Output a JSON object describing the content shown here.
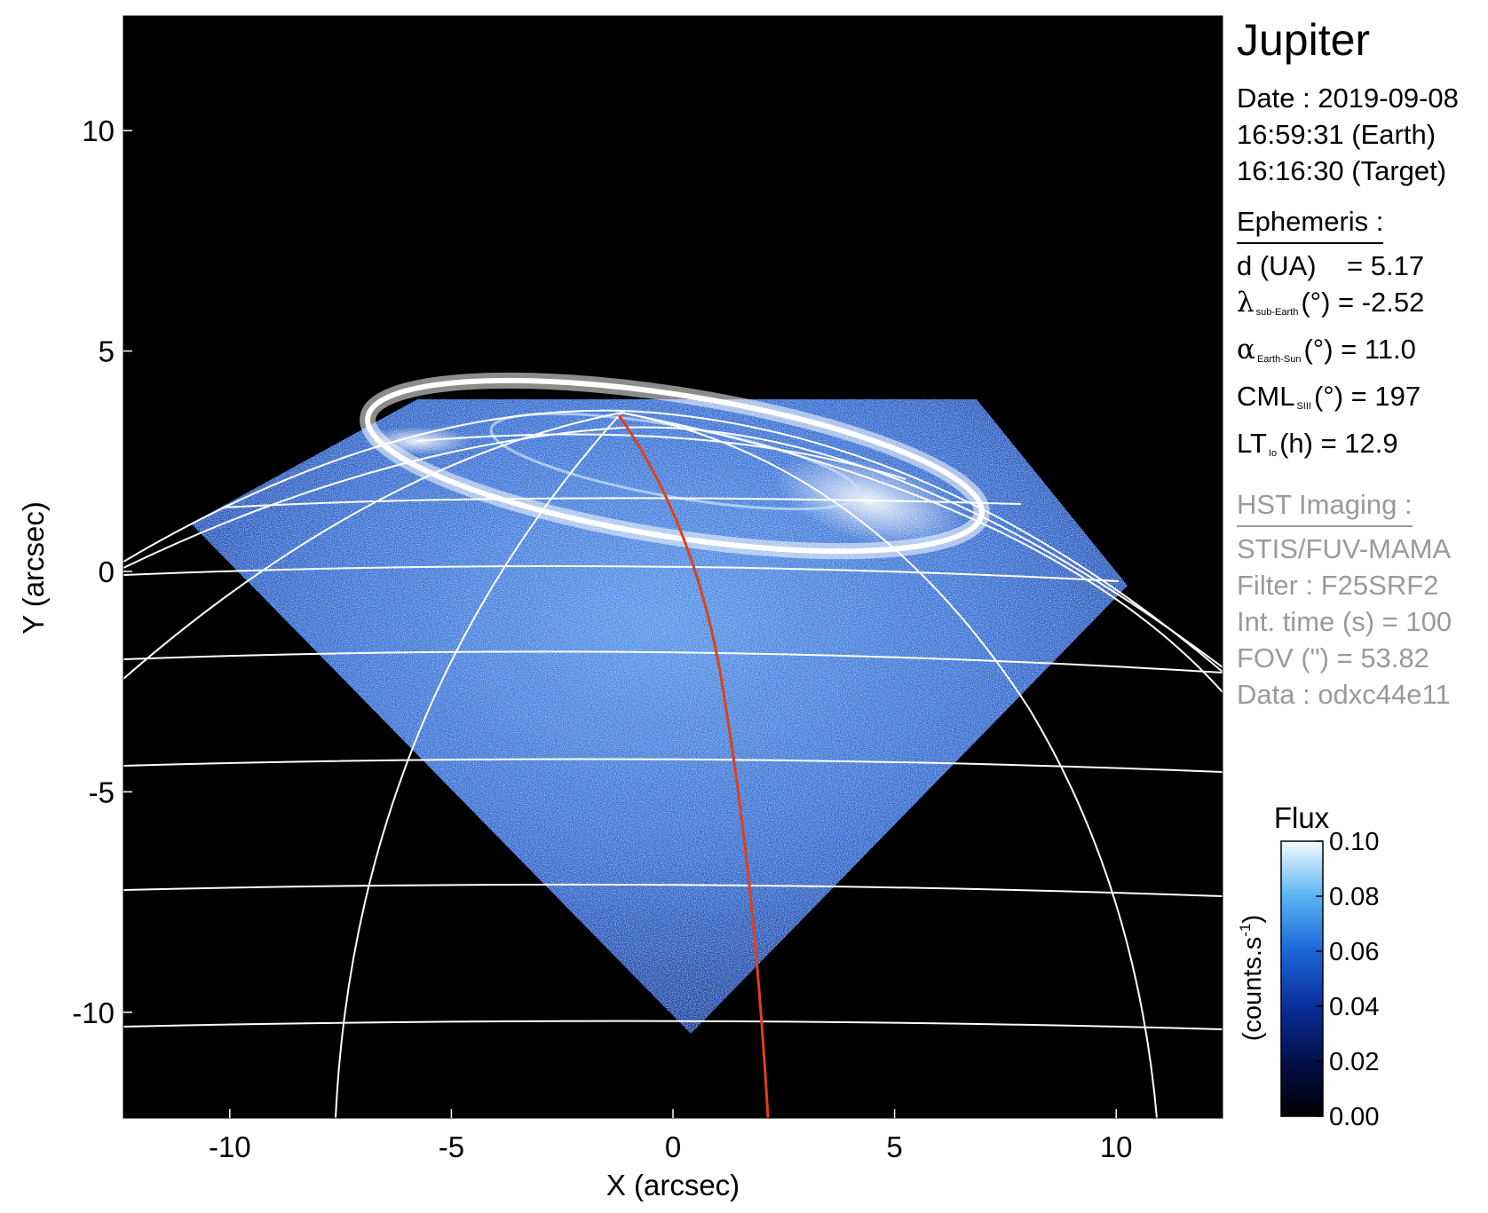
{
  "image": {
    "description_free": true,
    "x_axis": {
      "label": "X (arcsec)",
      "range": [
        -12.4,
        12.4
      ],
      "ticks": [
        -10,
        -5,
        0,
        5,
        10
      ],
      "tick_labels": [
        "-10",
        "-5",
        "0",
        "5",
        "10"
      ]
    },
    "y_axis": {
      "label": "Y (arcsec)",
      "range": [
        -12.4,
        12.6
      ],
      "ticks": [
        10,
        5,
        0,
        -5,
        -10
      ],
      "tick_labels": [
        "10",
        "5",
        "0",
        "-5",
        "-10"
      ]
    },
    "colors": {
      "background": "#000000",
      "grid": "#ffffff",
      "meridian": "#e0401a",
      "auroral_oval": "#ffffff",
      "detector_light": "#3f7fe0",
      "detector_dark": "#0b2f8f"
    }
  },
  "info": {
    "target": "Jupiter",
    "date_line": "Date : 2019-09-08",
    "earth_time": "16:59:31 (Earth)",
    "target_time": "16:16:30 (Target)",
    "ephemeris_header": "Ephemeris :",
    "d_label": "d (UA)",
    "d_value": "= 5.17",
    "lambda_symbol": "λ",
    "lambda_sub": "sub-Earth",
    "lambda_rest": "(°) = -2.52",
    "alpha_symbol": "α",
    "alpha_sub": "Earth-Sun",
    "alpha_rest": "(°) = 11.0",
    "cml_label": "CML",
    "cml_sub": "SIII",
    "cml_rest": "(°) = 197",
    "lt_label": "LT",
    "lt_sub": "Io",
    "lt_rest": "(h) = 12.9",
    "hst_header": "HST Imaging :",
    "instrument": "STIS/FUV-MAMA",
    "filter": "Filter : F25SRF2",
    "int_time": "Int. time (s) = 100",
    "fov": "FOV (\") = 53.82",
    "data_id": "Data : odxc44e11"
  },
  "colorbar": {
    "title": "Flux",
    "unit": "(counts.s-1)",
    "unit_base": "(counts.s",
    "unit_sup": "-1",
    "unit_close": ")",
    "ticks": [
      "0.10",
      "0.08",
      "0.06",
      "0.04",
      "0.02",
      "0.00"
    ],
    "range": [
      0.0,
      0.1
    ]
  }
}
